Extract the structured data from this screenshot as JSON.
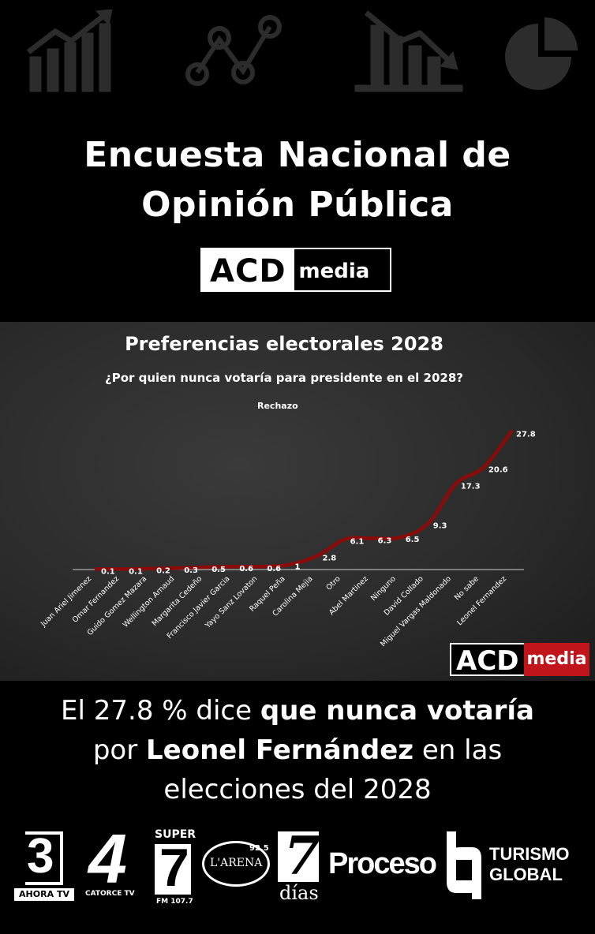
{
  "header": {
    "title_line1": "Encuesta Nacional de",
    "title_line2": "Opinión Pública",
    "brand_part1": "ACD",
    "brand_part2": "media",
    "icons": [
      "bar-chart-up-icon",
      "line-chart-icon",
      "bar-chart-down-icon",
      "pie-chart-icon"
    ]
  },
  "chart_data": {
    "type": "line",
    "title": "Preferencias electorales 2028",
    "subtitle": "¿Por quien nunca votaría para presidente en el 2028?",
    "series": [
      {
        "name": "Rechazo",
        "values": [
          0.1,
          0.1,
          0.2,
          0.3,
          0.5,
          0.6,
          0.6,
          1,
          2.8,
          6.1,
          6.3,
          6.5,
          9.3,
          17.3,
          20.6,
          27.8
        ]
      }
    ],
    "categories": [
      "Juan Ariel Jimenez",
      "Omar Fernandez",
      "Guido Gomez Mazara",
      "Wellington Arnaud",
      "Margarita Cedeño",
      "Francisco Javier Garcia",
      "Yayo Sanz Lovaton",
      "Raquel Peña",
      "Carolina Mejia",
      "Otro",
      "Abel Martinez",
      "Ninguno",
      "David Collado",
      "Miguel Vargas Maldonado",
      "No sabe",
      "Leonel Fernandez"
    ],
    "ylim": [
      0,
      28
    ],
    "line_color": "#8b0a0a",
    "grid": false,
    "legend": "none"
  },
  "watermark": {
    "part1": "ACD",
    "part2": "media",
    "accent": "#c2151b"
  },
  "headline": {
    "pre": "El 27.8 % dice ",
    "bold1": "que nunca votaría",
    "mid": "por ",
    "bold2": "Leonel Fernández",
    "post": " en las",
    "line3": "elecciones del 2028"
  },
  "logos": {
    "l1_num": "3",
    "l1_sub": "AHORA",
    "l1_sub2": "TV",
    "l2_num": "4",
    "l2_sub": "CATORCE TV",
    "l3_top": "SUPER",
    "l3_num": "7",
    "l3_sub": "FM 107.7",
    "l4_name": "L'ARENA",
    "l4_freq": "92.5",
    "l5_num": "7",
    "l5_sub": "días",
    "l6": "Proceso",
    "l7_line1": "TURISMO",
    "l7_line2": "GLOBAL"
  }
}
